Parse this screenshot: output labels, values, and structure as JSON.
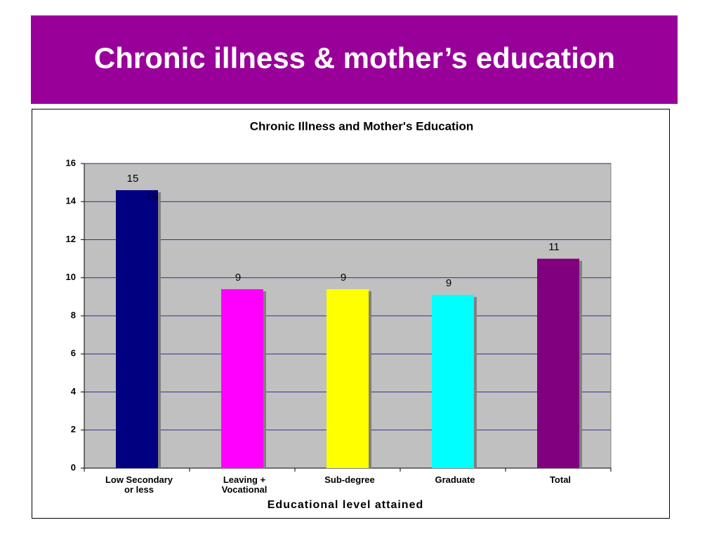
{
  "header": {
    "title": "Chronic illness & mother’s education"
  },
  "chart_data": {
    "type": "bar",
    "title": "Chronic Illness and Mother's Education",
    "x_label": "Educational level attained",
    "categories": [
      "Low Secondary\nor less",
      "Leaving +\nVocational",
      "Sub-degree",
      "Graduate",
      "Total"
    ],
    "values": [
      14.6,
      9.4,
      9.4,
      9.1,
      11.0
    ],
    "value_labels": [
      "15",
      "9",
      "9",
      "9",
      "11"
    ],
    "annotation": "15",
    "colors": [
      "#000080",
      "#ff00ff",
      "#ffff00",
      "#00ffff",
      "#800080"
    ],
    "ylim": [
      0,
      16
    ],
    "yticks": [
      0,
      2,
      4,
      6,
      8,
      10,
      12,
      14,
      16
    ],
    "grid": true
  }
}
